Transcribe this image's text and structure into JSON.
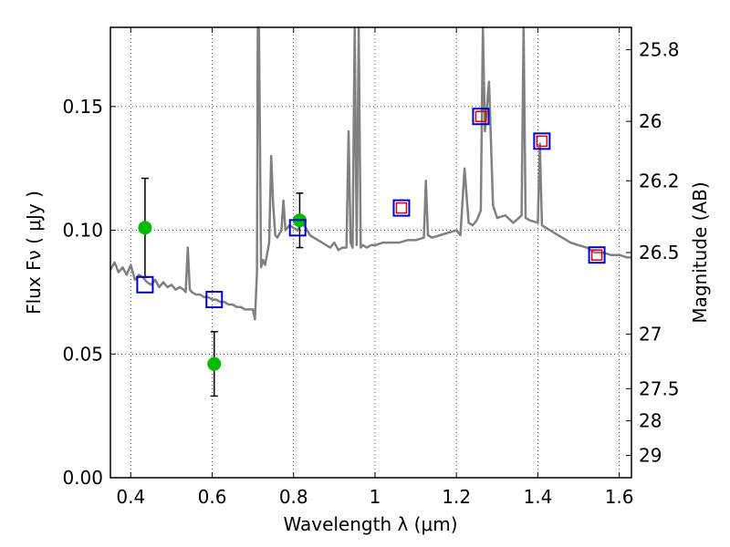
{
  "chart_data": {
    "type": "line",
    "xlabel": "Wavelength  λ (μm)",
    "ylabel": "Flux  Fν  ( μJy )",
    "ylabel_right": "Magnitude (AB)",
    "xlim": [
      0.35,
      1.63
    ],
    "ylim": [
      0.0,
      0.182
    ],
    "grid": true,
    "x_ticks": [
      0.4,
      0.6,
      0.8,
      1.0,
      1.2,
      1.4,
      1.6
    ],
    "x_tick_labels": [
      "0.4",
      "0.6",
      "0.8",
      "1",
      "1.2",
      "1.4",
      "1.6"
    ],
    "y_ticks": [
      0.0,
      0.05,
      0.1,
      0.15
    ],
    "y_tick_labels": [
      "0.00",
      "0.05",
      "0.10",
      "0.15"
    ],
    "right_ticks": [
      {
        "label": "25.8",
        "flux": 0.173
      },
      {
        "label": "26",
        "flux": 0.144
      },
      {
        "label": "26.2",
        "flux": 0.12
      },
      {
        "label": "26.5",
        "flux": 0.091
      },
      {
        "label": "27",
        "flux": 0.058
      },
      {
        "label": "27.5",
        "flux": 0.036
      },
      {
        "label": "28",
        "flux": 0.023
      },
      {
        "label": "29",
        "flux": 0.009
      }
    ],
    "series": [
      {
        "style": "line",
        "color": "#808080",
        "x": [
          0.35,
          0.36,
          0.37,
          0.38,
          0.39,
          0.4,
          0.41,
          0.42,
          0.43,
          0.44,
          0.45,
          0.46,
          0.47,
          0.48,
          0.49,
          0.5,
          0.51,
          0.52,
          0.53,
          0.535,
          0.54,
          0.545,
          0.55,
          0.56,
          0.57,
          0.58,
          0.59,
          0.6,
          0.61,
          0.62,
          0.63,
          0.64,
          0.65,
          0.66,
          0.67,
          0.68,
          0.69,
          0.7,
          0.705,
          0.71,
          0.712,
          0.715,
          0.72,
          0.725,
          0.73,
          0.74,
          0.745,
          0.75,
          0.755,
          0.76,
          0.77,
          0.775,
          0.78,
          0.79,
          0.8,
          0.81,
          0.82,
          0.83,
          0.84,
          0.85,
          0.86,
          0.87,
          0.88,
          0.89,
          0.9,
          0.91,
          0.92,
          0.93,
          0.935,
          0.94,
          0.945,
          0.95,
          0.955,
          0.96,
          0.965,
          0.97,
          0.98,
          0.99,
          1.0,
          1.02,
          1.04,
          1.06,
          1.08,
          1.1,
          1.12,
          1.125,
          1.13,
          1.14,
          1.16,
          1.18,
          1.2,
          1.21,
          1.22,
          1.23,
          1.24,
          1.25,
          1.26,
          1.265,
          1.27,
          1.28,
          1.29,
          1.3,
          1.32,
          1.34,
          1.36,
          1.365,
          1.37,
          1.38,
          1.4,
          1.405,
          1.41,
          1.42,
          1.44,
          1.46,
          1.48,
          1.5,
          1.52,
          1.54,
          1.56,
          1.58,
          1.6,
          1.62,
          1.63
        ],
        "y": [
          0.084,
          0.087,
          0.083,
          0.085,
          0.082,
          0.086,
          0.08,
          0.082,
          0.081,
          0.079,
          0.078,
          0.08,
          0.077,
          0.079,
          0.077,
          0.078,
          0.076,
          0.077,
          0.076,
          0.075,
          0.093,
          0.076,
          0.075,
          0.074,
          0.074,
          0.073,
          0.073,
          0.072,
          0.072,
          0.071,
          0.071,
          0.07,
          0.07,
          0.069,
          0.069,
          0.068,
          0.068,
          0.068,
          0.064,
          0.083,
          0.182,
          0.182,
          0.085,
          0.088,
          0.086,
          0.095,
          0.13,
          0.11,
          0.098,
          0.097,
          0.1,
          0.112,
          0.1,
          0.102,
          0.101,
          0.1,
          0.103,
          0.101,
          0.098,
          0.097,
          0.096,
          0.095,
          0.094,
          0.093,
          0.095,
          0.092,
          0.093,
          0.093,
          0.14,
          0.095,
          0.093,
          0.182,
          0.094,
          0.182,
          0.093,
          0.094,
          0.093,
          0.094,
          0.094,
          0.095,
          0.095,
          0.095,
          0.096,
          0.096,
          0.097,
          0.12,
          0.098,
          0.097,
          0.098,
          0.099,
          0.1,
          0.098,
          0.125,
          0.103,
          0.102,
          0.104,
          0.108,
          0.182,
          0.14,
          0.16,
          0.11,
          0.105,
          0.106,
          0.103,
          0.106,
          0.182,
          0.105,
          0.104,
          0.103,
          0.135,
          0.102,
          0.101,
          0.099,
          0.097,
          0.095,
          0.094,
          0.093,
          0.091,
          0.091,
          0.09,
          0.09,
          0.089,
          0.089
        ]
      },
      {
        "style": "markers",
        "marker": "circle",
        "color": "#00bb00",
        "x": [
          0.435,
          0.605,
          0.815
        ],
        "y": [
          0.101,
          0.046,
          0.104
        ],
        "yerr": [
          0.02,
          0.013,
          0.011
        ]
      },
      {
        "style": "markers",
        "marker": "open-square",
        "color": "#0000cc",
        "x": [
          0.435,
          0.605,
          0.81,
          1.065,
          1.26,
          1.41,
          1.545
        ],
        "y": [
          0.078,
          0.072,
          0.101,
          0.109,
          0.146,
          0.136,
          0.09
        ]
      },
      {
        "style": "markers",
        "marker": "open-square-small",
        "color": "#dd0000",
        "x": [
          1.065,
          1.26,
          1.41,
          1.545
        ],
        "y": [
          0.109,
          0.146,
          0.136,
          0.09
        ]
      }
    ]
  }
}
